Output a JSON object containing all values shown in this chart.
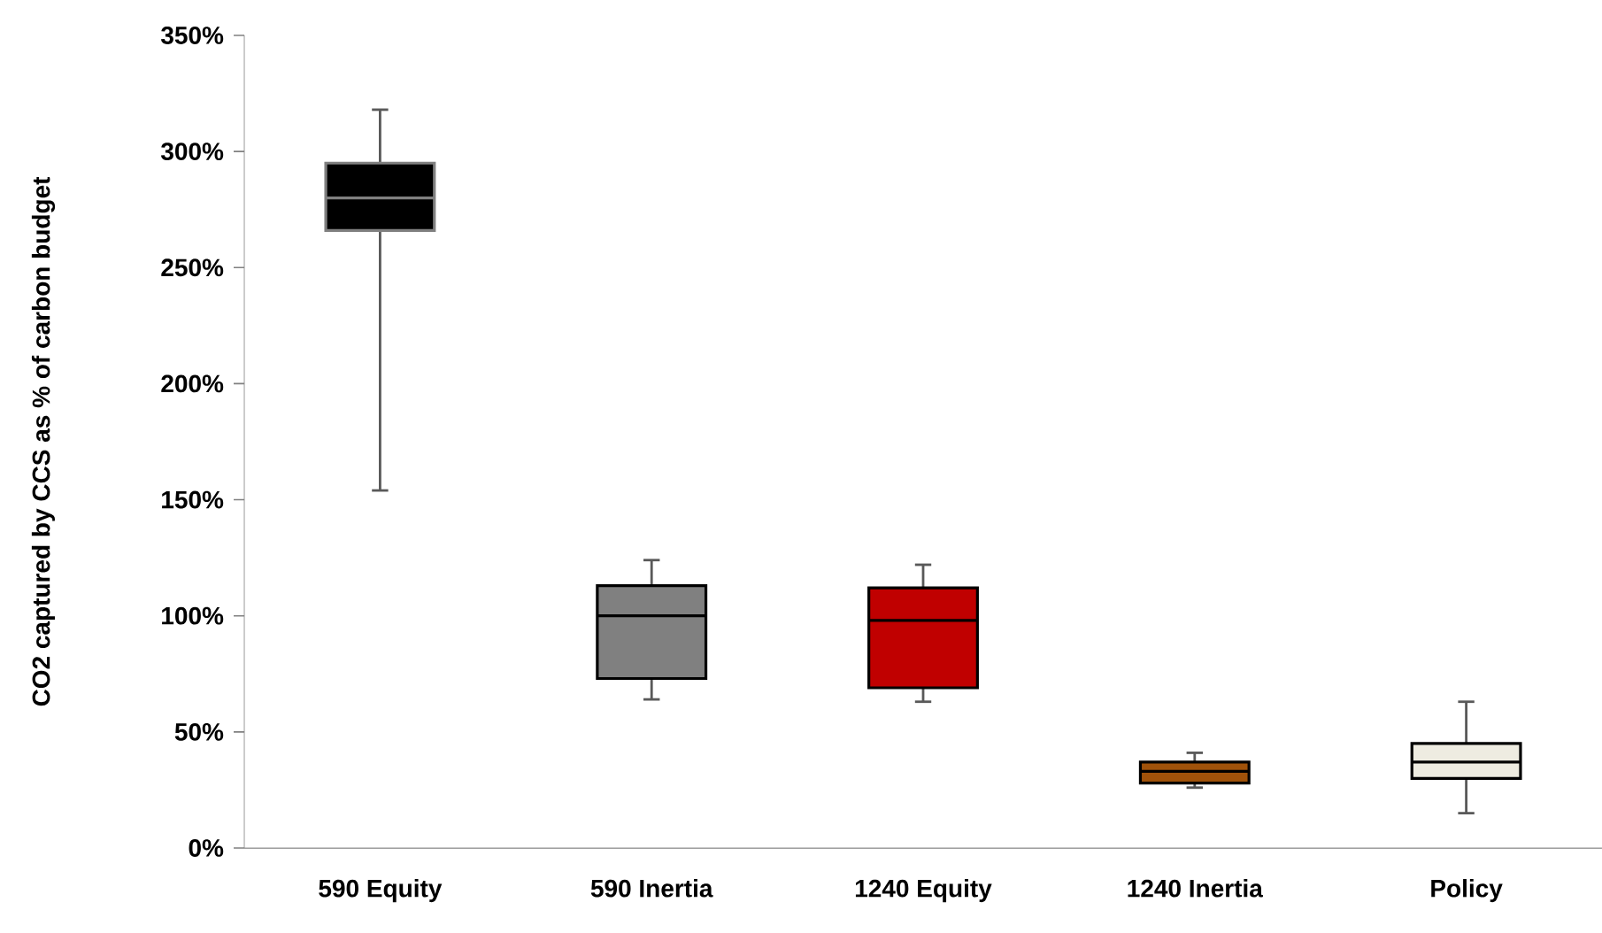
{
  "chart_data": {
    "type": "box",
    "ylabel": "CO2 captured by CCS as % of carbon budget",
    "categories": [
      "590 Equity",
      "590 Inertia",
      "1240 Equity",
      "1240 Inertia",
      "Policy"
    ],
    "colors": [
      "#000000",
      "#808080",
      "#c00000",
      "#a0520a",
      "#eeece1"
    ],
    "boxes": [
      {
        "low": 154,
        "q1": 266,
        "median": 280,
        "q3": 295,
        "high": 318
      },
      {
        "low": 64,
        "q1": 73,
        "median": 100,
        "q3": 113,
        "high": 124
      },
      {
        "low": 63,
        "q1": 69,
        "median": 98,
        "q3": 112,
        "high": 122
      },
      {
        "low": 26,
        "q1": 28,
        "median": 33,
        "q3": 37,
        "high": 41
      },
      {
        "low": 15,
        "q1": 30,
        "median": 37,
        "q3": 45,
        "high": 63
      }
    ],
    "ylim": [
      0,
      350
    ],
    "yticks": [
      {
        "value": 0,
        "label": "0%"
      },
      {
        "value": 50,
        "label": "50%"
      },
      {
        "value": 100,
        "label": "100%"
      },
      {
        "value": 150,
        "label": "150%"
      },
      {
        "value": 200,
        "label": "200%"
      },
      {
        "value": 250,
        "label": "250%"
      },
      {
        "value": 300,
        "label": "300%"
      },
      {
        "value": 350,
        "label": "350%"
      }
    ],
    "grid": false
  }
}
